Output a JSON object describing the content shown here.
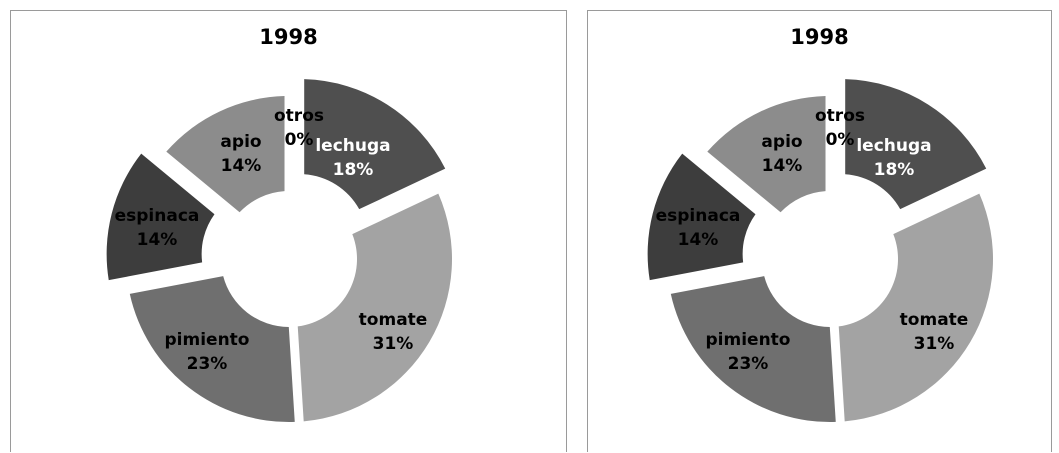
{
  "chart_data": [
    {
      "type": "donut",
      "title": "1998",
      "categories": [
        "lechuga",
        "tomate",
        "pimiento",
        "espinaca",
        "apio",
        "otros"
      ],
      "values": [
        18,
        31,
        23,
        14,
        14,
        0
      ],
      "value_labels": [
        "18%",
        "31%",
        "23%",
        "14%",
        "14%",
        "0%"
      ],
      "exploded": [
        "lechuga",
        "espinaca"
      ],
      "colors": [
        "#4f4f4f",
        "#a3a3a3",
        "#6f6f6f",
        "#3d3d3d",
        "#8c8c8c",
        "#9a9a9a"
      ],
      "label_colors": [
        "#ffffff",
        "#000000",
        "#000000",
        "#000000",
        "#000000",
        "#000000"
      ]
    },
    {
      "type": "donut",
      "title": "1998",
      "categories": [
        "lechuga",
        "tomate",
        "pimiento",
        "espinaca",
        "apio",
        "otros"
      ],
      "values": [
        18,
        31,
        23,
        14,
        14,
        0
      ],
      "value_labels": [
        "18%",
        "31%",
        "23%",
        "14%",
        "14%",
        "0%"
      ],
      "exploded": [
        "lechuga",
        "espinaca"
      ],
      "colors": [
        "#4f4f4f",
        "#a3a3a3",
        "#6f6f6f",
        "#3d3d3d",
        "#8c8c8c",
        "#9a9a9a"
      ],
      "label_colors": [
        "#ffffff",
        "#000000",
        "#000000",
        "#000000",
        "#000000",
        "#000000"
      ]
    }
  ]
}
